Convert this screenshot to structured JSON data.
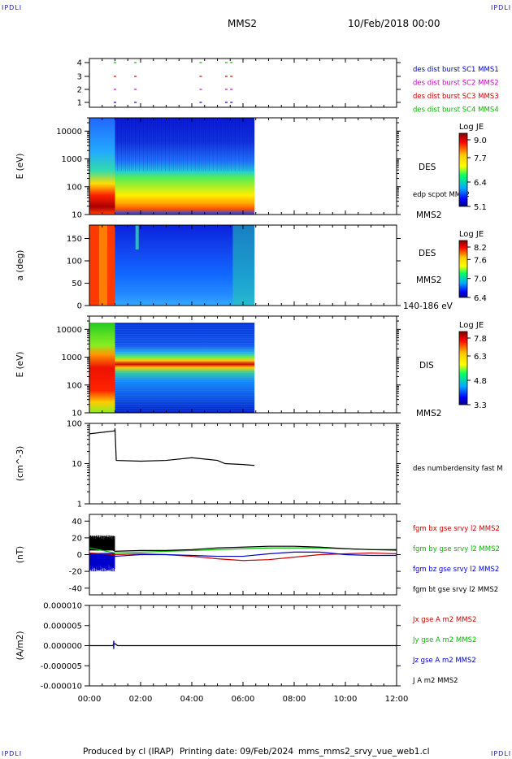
{
  "header": {
    "corner_tl": "IPDLI",
    "corner_tr": "IPDLI",
    "corner_bl": "IPDLI",
    "corner_br": "IPDLI",
    "title": "MMS2",
    "date": "10/Feb/2018 00:00"
  },
  "footer": {
    "credit": "Produced by cl (IRAP)",
    "printing": "Printing date: 09/Feb/2024",
    "filename": "mms_mms2_srvy_vue_web1.cl"
  },
  "chart_data": [
    {
      "type": "scatter",
      "id": "availability",
      "y_ticks": [
        "1",
        "2",
        "3",
        "4"
      ],
      "legend": [
        {
          "label": "des dist burst SC1 MMS1",
          "color": "#0000cc"
        },
        {
          "label": "des dist burst SC2 MMS2",
          "color": "#cc00cc"
        },
        {
          "label": "des dist burst SC3 MMS3",
          "color": "#cc0000"
        },
        {
          "label": "des dist burst SC4 MMS4",
          "color": "#00bb00"
        }
      ],
      "series": [
        {
          "sc": 1,
          "hours": [
            0.95,
            1.75,
            4.3,
            5.3,
            5.5
          ]
        },
        {
          "sc": 2,
          "hours": [
            0.95,
            1.75,
            4.3,
            5.3,
            5.5
          ]
        },
        {
          "sc": 3,
          "hours": [
            0.95,
            1.75,
            4.3,
            5.3,
            5.5
          ]
        },
        {
          "sc": 4,
          "hours": [
            0.95,
            1.75,
            4.3,
            5.3,
            5.5
          ]
        }
      ]
    },
    {
      "type": "heatmap",
      "id": "des-energy",
      "ylabel": "E (eV)",
      "y_ticks": [
        "10",
        "100",
        "1000",
        "10000"
      ],
      "ylim": [
        10,
        30000
      ],
      "scale": "log",
      "title_right": "DES",
      "sub_right": "edp scpot MMS2",
      "foot_right": "MMS2",
      "colorbar": {
        "title": "Log JE",
        "ticks": [
          "9.0",
          "7.7",
          "6.4",
          "5.1"
        ]
      },
      "x_end_hours": 6.45
    },
    {
      "type": "heatmap",
      "id": "des-pitch",
      "ylabel": "a (deg)",
      "y_ticks": [
        "0",
        "50",
        "100",
        "150"
      ],
      "ylim": [
        0,
        180
      ],
      "title_right": "DES",
      "sub_right": "MMS2",
      "foot_right": "140-186 eV",
      "colorbar": {
        "title": "Log JE",
        "ticks": [
          "8.2",
          "7.6",
          "7.0",
          "6.4"
        ]
      },
      "x_end_hours": 6.45
    },
    {
      "type": "heatmap",
      "id": "dis-energy",
      "ylabel": "E (eV)",
      "y_ticks": [
        "10",
        "100",
        "1000",
        "10000"
      ],
      "ylim": [
        10,
        30000
      ],
      "scale": "log",
      "title_right": "DIS",
      "foot_right": "MMS2",
      "colorbar": {
        "title": "Log JE",
        "ticks": [
          "7.8",
          "6.3",
          "4.8",
          "3.3"
        ]
      },
      "x_end_hours": 6.45
    },
    {
      "type": "line",
      "id": "density",
      "ylabel": "(cm^-3)",
      "y_ticks": [
        "1",
        "10",
        "100"
      ],
      "ylim": [
        1,
        100
      ],
      "scale": "log",
      "legend": [
        {
          "label": "des numberdensity fast M",
          "color": "#000000"
        }
      ],
      "series": [
        {
          "hours": [
            0,
            0.5,
            0.99,
            1.0,
            1.05,
            2,
            3,
            4,
            5,
            5.3,
            6,
            6.45
          ],
          "values": [
            55,
            60,
            65,
            75,
            12,
            11.5,
            12,
            14,
            12,
            10,
            9.5,
            9
          ]
        }
      ]
    },
    {
      "type": "line",
      "id": "magnetic-field",
      "ylabel": "(nT)",
      "y_ticks": [
        "-40",
        "-20",
        "0",
        "20",
        "40"
      ],
      "ylim": [
        -48,
        48
      ],
      "legend": [
        {
          "label": "fgm bx gse srvy l2 MMS2",
          "color": "#cc0000"
        },
        {
          "label": "fgm by gse srvy l2 MMS2",
          "color": "#00bb00"
        },
        {
          "label": "fgm bz gse srvy l2 MMS2",
          "color": "#0000cc"
        },
        {
          "label": "fgm bt gse srvy l2 MMS2",
          "color": "#000000"
        }
      ],
      "series": [
        {
          "name": "bx",
          "hours": [
            0,
            1,
            2,
            3,
            4,
            5,
            6,
            7,
            8,
            9,
            10,
            11,
            12
          ],
          "values": [
            2,
            0,
            1,
            0,
            -2,
            -5,
            -7,
            -6,
            -3,
            0,
            1,
            2,
            1
          ]
        },
        {
          "name": "by",
          "hours": [
            0,
            1,
            2,
            3,
            4,
            5,
            6,
            7,
            8,
            9,
            10,
            11,
            12
          ],
          "values": [
            8,
            2,
            3,
            4,
            5,
            6,
            7,
            8,
            8,
            8,
            7,
            6,
            5
          ]
        },
        {
          "name": "bz",
          "hours": [
            0,
            1,
            2,
            3,
            4,
            5,
            6,
            7,
            8,
            9,
            10,
            11,
            12
          ],
          "values": [
            -12,
            -2,
            0,
            0,
            -1,
            -2,
            -2,
            1,
            3,
            3,
            0,
            -1,
            -1
          ]
        },
        {
          "name": "bt",
          "hours": [
            0,
            1,
            2,
            3,
            4,
            5,
            6,
            7,
            8,
            9,
            10,
            11,
            12
          ],
          "values": [
            22,
            4,
            5,
            5,
            6,
            8,
            9,
            10,
            10,
            9,
            7,
            6,
            6
          ]
        }
      ]
    },
    {
      "type": "line",
      "id": "current-density",
      "ylabel": "(A/m2)",
      "y_ticks": [
        "-0.000010",
        "-0.000005",
        "0.000000",
        "0.000005",
        "0.000010"
      ],
      "ylim": [
        -1e-05,
        1e-05
      ],
      "legend": [
        {
          "label": "Jx gse A m2 MMS2",
          "color": "#cc0000"
        },
        {
          "label": "Jy gse A m2 MMS2",
          "color": "#00bb00"
        },
        {
          "label": "Jz gse A m2 MMS2",
          "color": "#0000cc"
        },
        {
          "label": "J A m2 MMS2",
          "color": "#000000"
        }
      ],
      "series": [
        {
          "name": "J",
          "hours": [
            0,
            0.9,
            1.0,
            1.1,
            6.45,
            12
          ],
          "values": [
            0,
            0,
            5e-07,
            0,
            0,
            0
          ]
        }
      ]
    }
  ],
  "x_axis": {
    "ticks": [
      "00:00",
      "02:00",
      "04:00",
      "06:00",
      "08:00",
      "10:00",
      "12:00"
    ],
    "xlim": [
      0,
      12
    ]
  }
}
